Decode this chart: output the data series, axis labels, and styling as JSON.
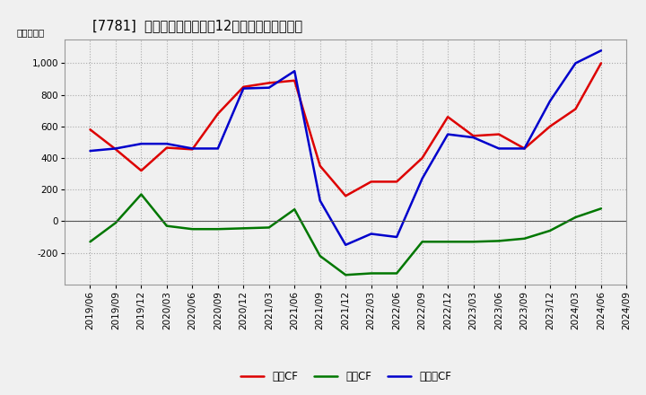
{
  "title": "[7781]  キャッシュフローの12か月移動合計の推移",
  "ylabel": "（百万円）",
  "dates": [
    "2019/06",
    "2019/09",
    "2019/12",
    "2020/03",
    "2020/06",
    "2020/09",
    "2020/12",
    "2021/03",
    "2021/06",
    "2021/09",
    "2021/12",
    "2022/03",
    "2022/06",
    "2022/09",
    "2022/12",
    "2023/03",
    "2023/06",
    "2023/09",
    "2023/12",
    "2024/03",
    "2024/06",
    "2024/09"
  ],
  "eigyo_cf": [
    580,
    455,
    320,
    465,
    455,
    680,
    850,
    875,
    890,
    350,
    160,
    250,
    250,
    400,
    660,
    540,
    550,
    460,
    600,
    710,
    1000,
    null
  ],
  "toshi_cf": [
    -130,
    -10,
    170,
    -30,
    -50,
    -50,
    -45,
    -40,
    75,
    -220,
    -340,
    -330,
    -330,
    -130,
    -130,
    -130,
    -125,
    -110,
    -60,
    25,
    80,
    null
  ],
  "free_cf": [
    445,
    460,
    490,
    490,
    460,
    460,
    840,
    845,
    950,
    130,
    -150,
    -80,
    -100,
    270,
    550,
    530,
    460,
    460,
    760,
    1000,
    1080,
    null
  ],
  "eigyo_color": "#dd0000",
  "toshi_color": "#007700",
  "free_color": "#0000cc",
  "line_width": 1.8,
  "bg_color": "#f0f0f0",
  "plot_bg_color": "#f8f8f8",
  "grid_color": "#bbbbbb",
  "ylim": [
    -400,
    1150
  ],
  "yticks": [
    -200,
    0,
    200,
    400,
    600,
    800,
    1000
  ],
  "legend_labels": [
    "営業CF",
    "投資CF",
    "フリーCF"
  ],
  "title_fontsize": 10.5,
  "tick_fontsize": 7.5,
  "ylabel_fontsize": 7.5
}
